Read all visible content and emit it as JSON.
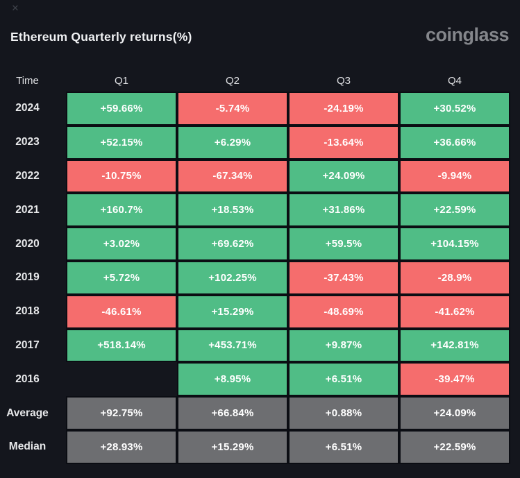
{
  "header": {
    "title": "Ethereum Quarterly returns(%)",
    "logo_text": "coinglass",
    "close_glyph": "✕"
  },
  "colors": {
    "background": "#14161d",
    "positive": "#50bd86",
    "negative": "#f56d6d",
    "neutral_summary": "#6d6e71",
    "cell_border": "#0b0d13",
    "cell_text": "#ffffff",
    "label_text": "#e8e9eb",
    "logo_text": "#84868b"
  },
  "table": {
    "columns": [
      "Time",
      "Q1",
      "Q2",
      "Q3",
      "Q4"
    ],
    "rows": [
      {
        "label": "2024",
        "cells": [
          {
            "text": "+59.66%",
            "type": "pos"
          },
          {
            "text": "-5.74%",
            "type": "neg"
          },
          {
            "text": "-24.19%",
            "type": "neg"
          },
          {
            "text": "+30.52%",
            "type": "pos"
          }
        ]
      },
      {
        "label": "2023",
        "cells": [
          {
            "text": "+52.15%",
            "type": "pos"
          },
          {
            "text": "+6.29%",
            "type": "pos"
          },
          {
            "text": "-13.64%",
            "type": "neg"
          },
          {
            "text": "+36.66%",
            "type": "pos"
          }
        ]
      },
      {
        "label": "2022",
        "cells": [
          {
            "text": "-10.75%",
            "type": "neg"
          },
          {
            "text": "-67.34%",
            "type": "neg"
          },
          {
            "text": "+24.09%",
            "type": "pos"
          },
          {
            "text": "-9.94%",
            "type": "neg"
          }
        ]
      },
      {
        "label": "2021",
        "cells": [
          {
            "text": "+160.7%",
            "type": "pos"
          },
          {
            "text": "+18.53%",
            "type": "pos"
          },
          {
            "text": "+31.86%",
            "type": "pos"
          },
          {
            "text": "+22.59%",
            "type": "pos"
          }
        ]
      },
      {
        "label": "2020",
        "cells": [
          {
            "text": "+3.02%",
            "type": "pos"
          },
          {
            "text": "+69.62%",
            "type": "pos"
          },
          {
            "text": "+59.5%",
            "type": "pos"
          },
          {
            "text": "+104.15%",
            "type": "pos"
          }
        ]
      },
      {
        "label": "2019",
        "cells": [
          {
            "text": "+5.72%",
            "type": "pos"
          },
          {
            "text": "+102.25%",
            "type": "pos"
          },
          {
            "text": "-37.43%",
            "type": "neg"
          },
          {
            "text": "-28.9%",
            "type": "neg"
          }
        ]
      },
      {
        "label": "2018",
        "cells": [
          {
            "text": "-46.61%",
            "type": "neg"
          },
          {
            "text": "+15.29%",
            "type": "pos"
          },
          {
            "text": "-48.69%",
            "type": "neg"
          },
          {
            "text": "-41.62%",
            "type": "neg"
          }
        ]
      },
      {
        "label": "2017",
        "cells": [
          {
            "text": "+518.14%",
            "type": "pos"
          },
          {
            "text": "+453.71%",
            "type": "pos"
          },
          {
            "text": "+9.87%",
            "type": "pos"
          },
          {
            "text": "+142.81%",
            "type": "pos"
          }
        ]
      },
      {
        "label": "2016",
        "cells": [
          {
            "text": "",
            "type": "empty"
          },
          {
            "text": "+8.95%",
            "type": "pos"
          },
          {
            "text": "+6.51%",
            "type": "pos"
          },
          {
            "text": "-39.47%",
            "type": "neg"
          }
        ]
      },
      {
        "label": "Average",
        "cells": [
          {
            "text": "+92.75%",
            "type": "avg"
          },
          {
            "text": "+66.84%",
            "type": "avg"
          },
          {
            "text": "+0.88%",
            "type": "avg"
          },
          {
            "text": "+24.09%",
            "type": "avg"
          }
        ]
      },
      {
        "label": "Median",
        "cells": [
          {
            "text": "+28.93%",
            "type": "avg"
          },
          {
            "text": "+15.29%",
            "type": "avg"
          },
          {
            "text": "+6.51%",
            "type": "avg"
          },
          {
            "text": "+22.59%",
            "type": "avg"
          }
        ]
      }
    ]
  },
  "chart_data": {
    "type": "heatmap",
    "title": "Ethereum Quarterly returns(%)",
    "columns": [
      "Q1",
      "Q2",
      "Q3",
      "Q4"
    ],
    "rows": [
      "2024",
      "2023",
      "2022",
      "2021",
      "2020",
      "2019",
      "2018",
      "2017",
      "2016",
      "Average",
      "Median"
    ],
    "values": [
      [
        59.66,
        -5.74,
        -24.19,
        30.52
      ],
      [
        52.15,
        6.29,
        -13.64,
        36.66
      ],
      [
        -10.75,
        -67.34,
        24.09,
        -9.94
      ],
      [
        160.7,
        18.53,
        31.86,
        22.59
      ],
      [
        3.02,
        69.62,
        59.5,
        104.15
      ],
      [
        5.72,
        102.25,
        -37.43,
        -28.9
      ],
      [
        -46.61,
        15.29,
        -48.69,
        -41.62
      ],
      [
        518.14,
        453.71,
        9.87,
        142.81
      ],
      [
        null,
        8.95,
        6.51,
        -39.47
      ],
      [
        92.75,
        66.84,
        0.88,
        24.09
      ],
      [
        28.93,
        15.29,
        6.51,
        22.59
      ]
    ],
    "value_unit": "%",
    "color_rule": "positive=green, negative=red, summary rows (Average/Median)=gray",
    "legend": "none",
    "grid": "dark 4px separators between cells"
  }
}
